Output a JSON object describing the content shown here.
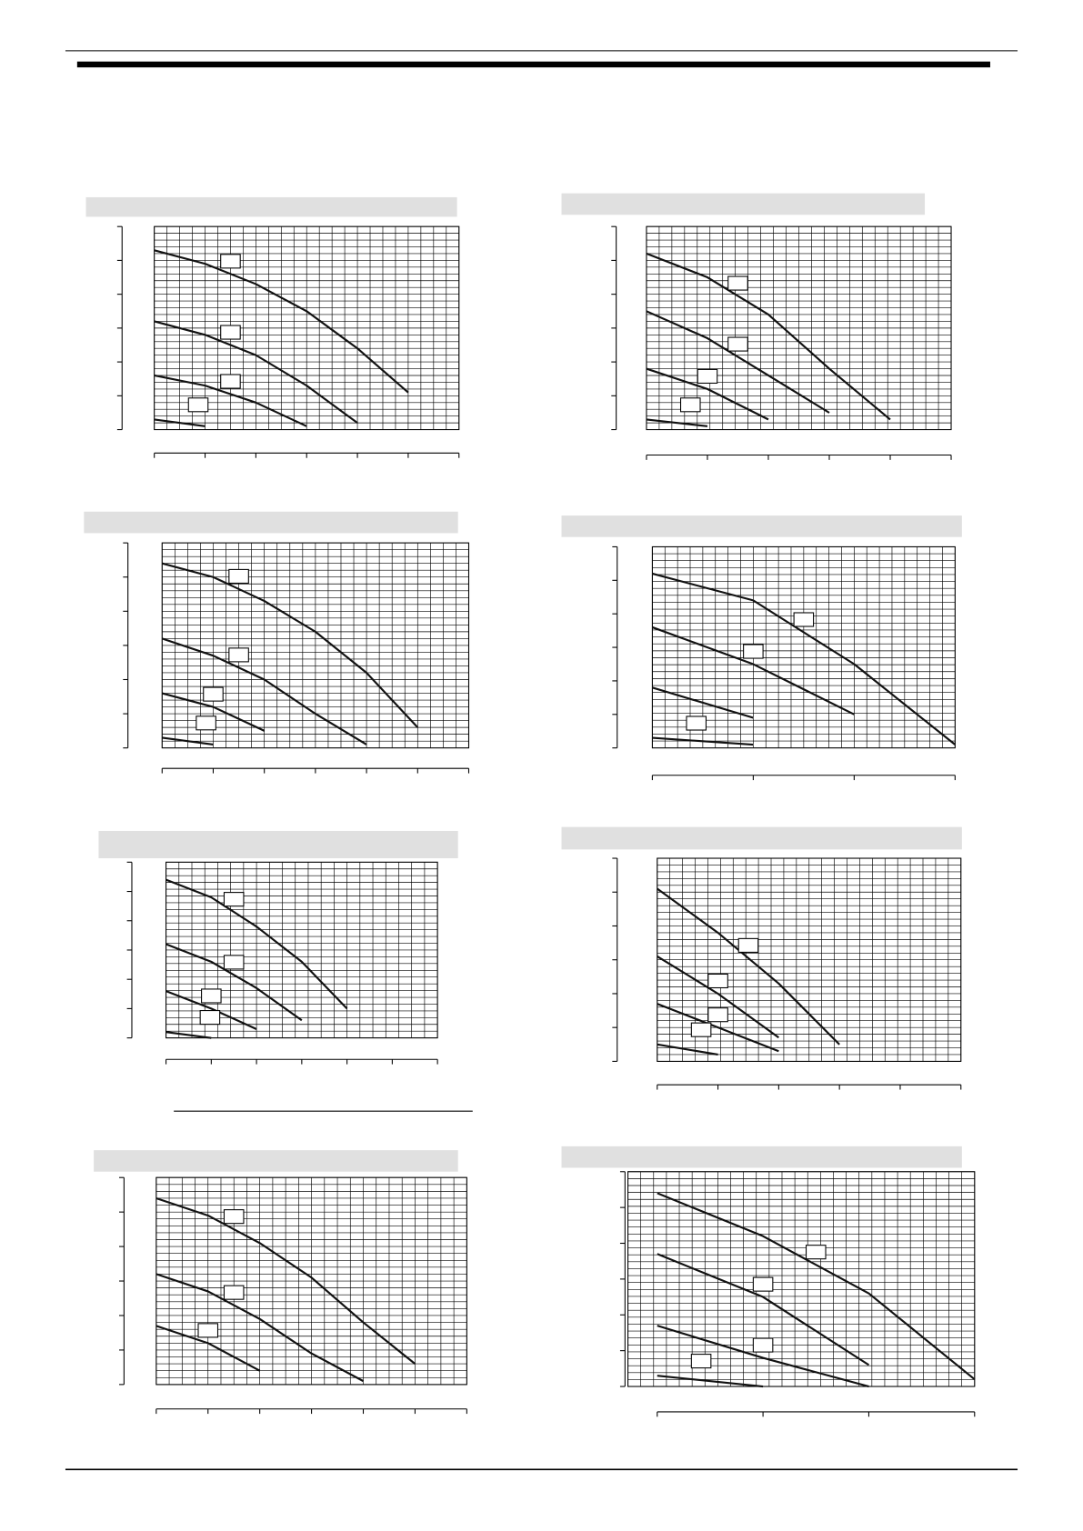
{
  "chart_data": [
    {
      "type": "line",
      "x": [
        0,
        1,
        2,
        3,
        4,
        5,
        6
      ],
      "xlim": [
        0,
        6
      ],
      "ylim": [
        0,
        6
      ],
      "series": [
        {
          "color": "#111111",
          "values": [
            5.3,
            4.9,
            4.3,
            3.5,
            2.4,
            1.1,
            null
          ]
        },
        {
          "color": "#111111",
          "values": [
            3.2,
            2.8,
            2.2,
            1.3,
            0.2,
            null,
            null
          ]
        },
        {
          "color": "#111111",
          "values": [
            1.6,
            1.3,
            0.8,
            0.1,
            null,
            null,
            null
          ]
        },
        {
          "color": "#111111",
          "values": [
            0.3,
            0.1,
            null,
            null,
            null,
            null,
            null
          ]
        }
      ]
    },
    {
      "type": "line",
      "x": [
        0,
        1,
        2,
        3,
        4,
        5
      ],
      "xlim": [
        0,
        5
      ],
      "ylim": [
        0,
        6
      ],
      "series": [
        {
          "color": "#111111",
          "values": [
            5.2,
            4.5,
            3.4,
            1.8,
            0.3,
            null
          ]
        },
        {
          "color": "#111111",
          "values": [
            3.5,
            2.7,
            1.6,
            0.5,
            null,
            null
          ]
        },
        {
          "color": "#111111",
          "values": [
            1.8,
            1.2,
            0.3,
            null,
            null,
            null
          ]
        },
        {
          "color": "#111111",
          "values": [
            0.3,
            0.1,
            null,
            null,
            null,
            null
          ]
        }
      ]
    },
    {
      "type": "line",
      "x": [
        0,
        1,
        2,
        3,
        4,
        5,
        6
      ],
      "xlim": [
        0,
        6
      ],
      "ylim": [
        0,
        6
      ],
      "series": [
        {
          "color": "#111111",
          "values": [
            5.4,
            5.0,
            4.3,
            3.4,
            2.2,
            0.6,
            null
          ]
        },
        {
          "color": "#111111",
          "values": [
            3.2,
            2.7,
            2.0,
            1.0,
            0.1,
            null,
            null
          ]
        },
        {
          "color": "#111111",
          "values": [
            1.6,
            1.2,
            0.5,
            null,
            null,
            null,
            null
          ]
        },
        {
          "color": "#111111",
          "values": [
            0.3,
            0.1,
            null,
            null,
            null,
            null,
            null
          ]
        }
      ]
    },
    {
      "type": "line",
      "x": [
        0,
        1,
        2,
        3
      ],
      "xlim": [
        0,
        3
      ],
      "ylim": [
        0,
        6
      ],
      "series": [
        {
          "color": "#111111",
          "values": [
            5.2,
            4.4,
            2.5,
            0.1
          ]
        },
        {
          "color": "#111111",
          "values": [
            3.6,
            2.5,
            1.0,
            null
          ]
        },
        {
          "color": "#111111",
          "values": [
            1.8,
            0.9,
            null,
            null
          ]
        },
        {
          "color": "#111111",
          "values": [
            0.3,
            0.1,
            null,
            null
          ]
        }
      ]
    },
    {
      "type": "line",
      "x": [
        0,
        1,
        2,
        3,
        4,
        5,
        6
      ],
      "xlim": [
        0,
        6
      ],
      "ylim": [
        0,
        6
      ],
      "series": [
        {
          "color": "#111111",
          "values": [
            5.4,
            4.8,
            3.8,
            2.6,
            1.0,
            null,
            null
          ]
        },
        {
          "color": "#111111",
          "values": [
            3.2,
            2.6,
            1.7,
            0.6,
            null,
            null,
            null
          ]
        },
        {
          "color": "#111111",
          "values": [
            1.6,
            1.0,
            0.3,
            null,
            null,
            null,
            null
          ]
        },
        {
          "color": "#111111",
          "values": [
            0.2,
            0.0,
            null,
            null,
            null,
            null,
            null
          ]
        }
      ]
    },
    {
      "type": "line",
      "x": [
        0,
        1,
        2,
        3,
        4,
        5
      ],
      "xlim": [
        0,
        5
      ],
      "ylim": [
        0,
        6
      ],
      "series": [
        {
          "color": "#111111",
          "values": [
            5.1,
            3.8,
            2.3,
            0.5,
            null,
            null
          ]
        },
        {
          "color": "#111111",
          "values": [
            3.1,
            2.0,
            0.7,
            null,
            null,
            null
          ]
        },
        {
          "color": "#111111",
          "values": [
            1.7,
            1.0,
            0.3,
            null,
            null,
            null
          ]
        },
        {
          "color": "#111111",
          "values": [
            0.5,
            0.2,
            null,
            null,
            null,
            null
          ]
        }
      ]
    },
    {
      "type": "line",
      "x": [
        0,
        1,
        2,
        3,
        4,
        5,
        6
      ],
      "xlim": [
        0,
        6
      ],
      "ylim": [
        0,
        6
      ],
      "series": [
        {
          "color": "#111111",
          "values": [
            5.4,
            4.9,
            4.1,
            3.1,
            1.8,
            0.6,
            null
          ]
        },
        {
          "color": "#111111",
          "values": [
            3.2,
            2.7,
            1.9,
            0.9,
            0.1,
            null,
            null
          ]
        },
        {
          "color": "#111111",
          "values": [
            1.7,
            1.2,
            0.4,
            null,
            null,
            null,
            null
          ]
        }
      ]
    },
    {
      "type": "line",
      "x": [
        0,
        1,
        2,
        3
      ],
      "xlim": [
        0,
        3
      ],
      "ylim": [
        0,
        6
      ],
      "series": [
        {
          "color": "#111111",
          "values": [
            5.4,
            4.2,
            2.6,
            0.2
          ]
        },
        {
          "color": "#111111",
          "values": [
            3.7,
            2.5,
            0.6,
            null
          ]
        },
        {
          "color": "#111111",
          "values": [
            1.7,
            0.8,
            0.0,
            null
          ]
        },
        {
          "color": "#111111",
          "values": [
            0.3,
            0.0,
            null,
            null
          ]
        }
      ]
    }
  ]
}
